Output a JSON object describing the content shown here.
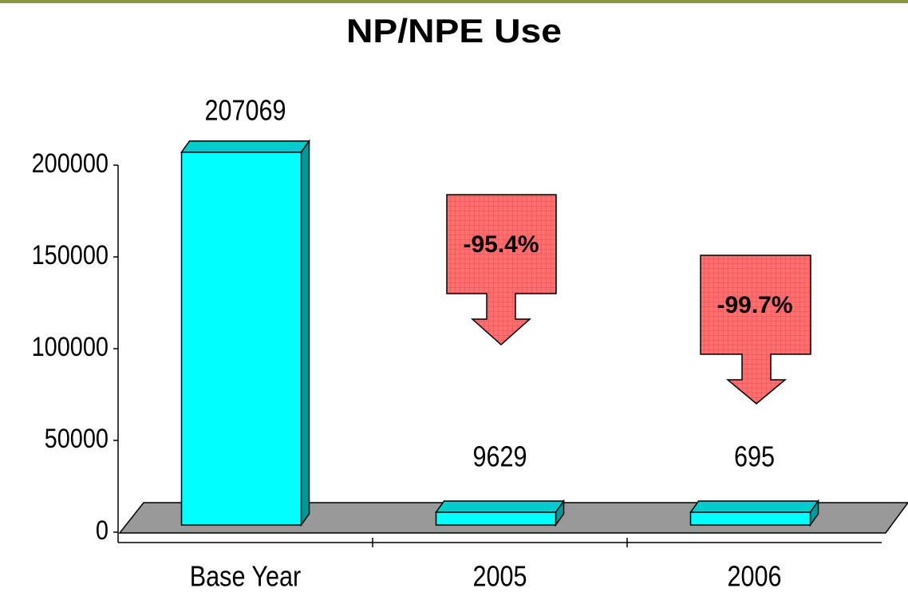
{
  "chart_data": {
    "type": "bar",
    "title": "NP/NPE Use",
    "categories": [
      "Base Year",
      "2005",
      "2006"
    ],
    "values": [
      207069,
      9629,
      695
    ],
    "color": "#00ffff",
    "ylim": [
      0,
      200000
    ],
    "yticks": [
      0,
      50000,
      100000,
      150000,
      200000
    ],
    "annotations": [
      "-95.4%",
      "-99.7%"
    ]
  }
}
